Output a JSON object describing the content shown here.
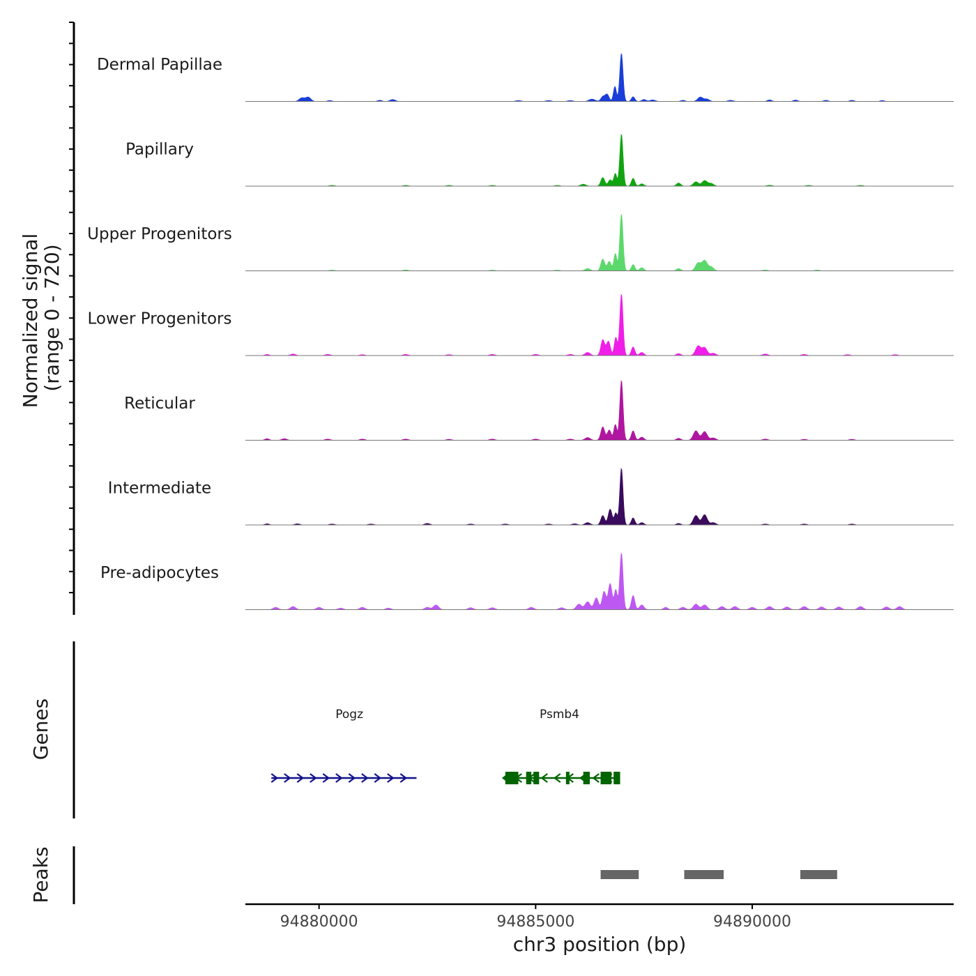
{
  "chart_data": {
    "type": "area",
    "title": "",
    "xlabel": "chr3 position (bp)",
    "ylabel": [
      "Normalized signal",
      "(range 0 - 720)"
    ],
    "ylim": [
      0,
      720
    ],
    "xlim": [
      94878300,
      94894650
    ],
    "x_ticks": [
      94880000,
      94885000,
      94890000
    ],
    "x_tick_labels": [
      "94880000",
      "94885000",
      "94890000"
    ],
    "tracks": [
      {
        "name": "Dermal Papillae",
        "color": "#1a3ed8",
        "peaks": [
          [
            94879600,
            45,
            60
          ],
          [
            94879750,
            55,
            60
          ],
          [
            94880250,
            12,
            50
          ],
          [
            94881400,
            15,
            50
          ],
          [
            94881700,
            25,
            60
          ],
          [
            94884600,
            12,
            60
          ],
          [
            94885300,
            12,
            60
          ],
          [
            94885800,
            12,
            60
          ],
          [
            94886300,
            30,
            70
          ],
          [
            94886550,
            60,
            45
          ],
          [
            94886650,
            90,
            45
          ],
          [
            94886830,
            190,
            35
          ],
          [
            94886980,
            610,
            38
          ],
          [
            94887250,
            60,
            40
          ],
          [
            94887500,
            25,
            50
          ],
          [
            94887700,
            20,
            60
          ],
          [
            94888400,
            15,
            50
          ],
          [
            94888800,
            55,
            60
          ],
          [
            94888950,
            30,
            60
          ],
          [
            94889500,
            15,
            60
          ],
          [
            94890400,
            20,
            50
          ],
          [
            94891000,
            18,
            50
          ],
          [
            94891700,
            15,
            50
          ],
          [
            94892300,
            15,
            50
          ],
          [
            94893000,
            12,
            50
          ]
        ]
      },
      {
        "name": "Papillary",
        "color": "#11a411",
        "peaks": [
          [
            94880300,
            10,
            60
          ],
          [
            94882000,
            10,
            60
          ],
          [
            94883000,
            10,
            60
          ],
          [
            94884000,
            10,
            60
          ],
          [
            94885500,
            10,
            60
          ],
          [
            94886100,
            25,
            60
          ],
          [
            94886550,
            110,
            45
          ],
          [
            94886720,
            80,
            45
          ],
          [
            94886840,
            160,
            35
          ],
          [
            94886980,
            660,
            38
          ],
          [
            94887250,
            100,
            40
          ],
          [
            94887450,
            30,
            50
          ],
          [
            94888300,
            40,
            50
          ],
          [
            94888700,
            55,
            60
          ],
          [
            94888900,
            70,
            60
          ],
          [
            94889050,
            35,
            60
          ],
          [
            94890400,
            12,
            60
          ],
          [
            94891300,
            10,
            60
          ],
          [
            94892500,
            10,
            60
          ]
        ]
      },
      {
        "name": "Upper Progenitors",
        "color": "#5cd86c",
        "peaks": [
          [
            94880300,
            10,
            60
          ],
          [
            94882000,
            12,
            60
          ],
          [
            94884000,
            10,
            60
          ],
          [
            94885500,
            10,
            60
          ],
          [
            94886200,
            30,
            60
          ],
          [
            94886550,
            150,
            45
          ],
          [
            94886700,
            120,
            45
          ],
          [
            94886840,
            220,
            35
          ],
          [
            94886980,
            720,
            38
          ],
          [
            94887250,
            80,
            40
          ],
          [
            94887450,
            40,
            50
          ],
          [
            94888300,
            30,
            50
          ],
          [
            94888750,
            100,
            60
          ],
          [
            94888900,
            130,
            60
          ],
          [
            94889050,
            50,
            60
          ],
          [
            94890300,
            12,
            60
          ],
          [
            94891500,
            10,
            60
          ]
        ]
      },
      {
        "name": "Lower Progenitors",
        "color": "#f01ee8",
        "peaks": [
          [
            94878800,
            15,
            50
          ],
          [
            94879400,
            20,
            60
          ],
          [
            94880200,
            15,
            60
          ],
          [
            94881000,
            12,
            60
          ],
          [
            94882000,
            15,
            60
          ],
          [
            94883000,
            12,
            60
          ],
          [
            94884000,
            15,
            60
          ],
          [
            94885000,
            15,
            60
          ],
          [
            94885800,
            15,
            60
          ],
          [
            94886200,
            40,
            60
          ],
          [
            94886550,
            200,
            45
          ],
          [
            94886680,
            180,
            45
          ],
          [
            94886850,
            230,
            35
          ],
          [
            94886980,
            780,
            38
          ],
          [
            94887250,
            110,
            40
          ],
          [
            94887450,
            40,
            50
          ],
          [
            94888300,
            25,
            50
          ],
          [
            94888750,
            120,
            60
          ],
          [
            94888900,
            100,
            60
          ],
          [
            94889100,
            30,
            60
          ],
          [
            94890300,
            20,
            60
          ],
          [
            94891200,
            15,
            60
          ],
          [
            94892200,
            12,
            60
          ],
          [
            94893300,
            12,
            60
          ]
        ]
      },
      {
        "name": "Reticular",
        "color": "#b0169f",
        "peaks": [
          [
            94878800,
            20,
            50
          ],
          [
            94879200,
            20,
            60
          ],
          [
            94880200,
            15,
            60
          ],
          [
            94881000,
            15,
            60
          ],
          [
            94882000,
            15,
            60
          ],
          [
            94883000,
            12,
            60
          ],
          [
            94884000,
            15,
            60
          ],
          [
            94885000,
            15,
            60
          ],
          [
            94885800,
            15,
            60
          ],
          [
            94886200,
            35,
            60
          ],
          [
            94886550,
            170,
            45
          ],
          [
            94886700,
            130,
            45
          ],
          [
            94886840,
            200,
            35
          ],
          [
            94886980,
            760,
            38
          ],
          [
            94887250,
            120,
            40
          ],
          [
            94887450,
            40,
            50
          ],
          [
            94888300,
            25,
            50
          ],
          [
            94888700,
            120,
            60
          ],
          [
            94888900,
            110,
            60
          ],
          [
            94889100,
            30,
            60
          ],
          [
            94890300,
            15,
            60
          ],
          [
            94891200,
            12,
            60
          ],
          [
            94892300,
            12,
            60
          ]
        ]
      },
      {
        "name": "Intermediate",
        "color": "#3a0a5c",
        "peaks": [
          [
            94878800,
            15,
            50
          ],
          [
            94879500,
            15,
            60
          ],
          [
            94880300,
            12,
            60
          ],
          [
            94881200,
            12,
            60
          ],
          [
            94882500,
            20,
            60
          ],
          [
            94883500,
            12,
            60
          ],
          [
            94884300,
            12,
            60
          ],
          [
            94885300,
            12,
            60
          ],
          [
            94885900,
            15,
            60
          ],
          [
            94886200,
            30,
            60
          ],
          [
            94886550,
            120,
            45
          ],
          [
            94886720,
            200,
            45
          ],
          [
            94886850,
            150,
            35
          ],
          [
            94886980,
            720,
            38
          ],
          [
            94887250,
            90,
            40
          ],
          [
            94887450,
            30,
            50
          ],
          [
            94888300,
            20,
            50
          ],
          [
            94888700,
            120,
            60
          ],
          [
            94888900,
            130,
            60
          ],
          [
            94889100,
            30,
            60
          ],
          [
            94890300,
            12,
            60
          ],
          [
            94891200,
            12,
            60
          ],
          [
            94892300,
            12,
            60
          ]
        ]
      },
      {
        "name": "Pre-adipocytes",
        "color": "#be58f2",
        "peaks": [
          [
            94879000,
            30,
            60
          ],
          [
            94879400,
            40,
            60
          ],
          [
            94880000,
            30,
            60
          ],
          [
            94880500,
            20,
            60
          ],
          [
            94881000,
            30,
            60
          ],
          [
            94881600,
            20,
            60
          ],
          [
            94882500,
            30,
            60
          ],
          [
            94882700,
            60,
            60
          ],
          [
            94883500,
            25,
            60
          ],
          [
            94884000,
            25,
            60
          ],
          [
            94884900,
            30,
            60
          ],
          [
            94885600,
            25,
            60
          ],
          [
            94886000,
            70,
            60
          ],
          [
            94886200,
            100,
            60
          ],
          [
            94886400,
            150,
            50
          ],
          [
            94886580,
            230,
            45
          ],
          [
            94886720,
            330,
            45
          ],
          [
            94886850,
            250,
            35
          ],
          [
            94886980,
            720,
            38
          ],
          [
            94887250,
            180,
            40
          ],
          [
            94887450,
            60,
            50
          ],
          [
            94888000,
            30,
            50
          ],
          [
            94888400,
            30,
            60
          ],
          [
            94888700,
            70,
            60
          ],
          [
            94888900,
            60,
            60
          ],
          [
            94889300,
            40,
            60
          ],
          [
            94889600,
            40,
            60
          ],
          [
            94890000,
            30,
            60
          ],
          [
            94890400,
            40,
            60
          ],
          [
            94890800,
            35,
            60
          ],
          [
            94891200,
            40,
            60
          ],
          [
            94891600,
            35,
            60
          ],
          [
            94892000,
            35,
            60
          ],
          [
            94892500,
            40,
            60
          ],
          [
            94893100,
            35,
            60
          ],
          [
            94893400,
            40,
            60
          ]
        ]
      }
    ],
    "genes": [
      {
        "name": "Pogz",
        "strand": "+",
        "start": 94878900,
        "end": 94882250,
        "color": "#10128a",
        "label_x": 94880700,
        "exons": []
      },
      {
        "name": "Psmb4",
        "strand": "-",
        "start": 94884250,
        "end": 94886950,
        "color": "#006400",
        "label_x": 94885550,
        "exons": [
          [
            94884300,
            94884600
          ],
          [
            94884780,
            94884900
          ],
          [
            94884950,
            94885080
          ],
          [
            94885700,
            94885780
          ],
          [
            94886100,
            94886250
          ],
          [
            94886500,
            94886750
          ],
          [
            94886800,
            94886950
          ]
        ]
      }
    ],
    "peaks_track": {
      "label": "Peaks",
      "color": "#666666",
      "regions": [
        [
          94886500,
          94887380
        ],
        [
          94888430,
          94889340
        ],
        [
          94891110,
          94891960
        ]
      ]
    },
    "genes_track_label": "Genes"
  }
}
